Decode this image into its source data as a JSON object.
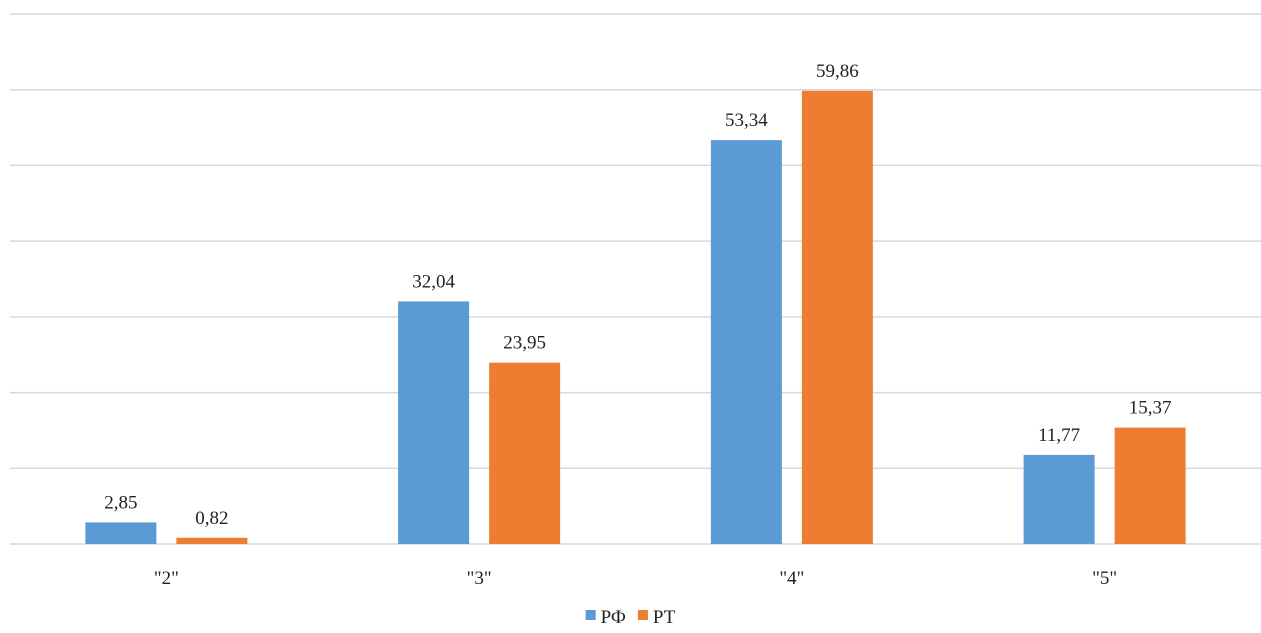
{
  "chart_data": {
    "type": "bar",
    "categories": [
      "\"2\"",
      "\"3\"",
      "\"4\"",
      "\"5\""
    ],
    "series": [
      {
        "name": "РФ",
        "values": [
          2.85,
          32.04,
          53.34,
          11.77
        ],
        "labels": [
          "2,85",
          "32,04",
          "53,34",
          "11,77"
        ],
        "color": "#5b9bd5"
      },
      {
        "name": "РТ",
        "values": [
          0.82,
          23.95,
          59.86,
          15.37
        ],
        "labels": [
          "0,82",
          "23,95",
          "59,86",
          "15,37"
        ],
        "color": "#ed7d31"
      }
    ],
    "ylim": [
      0,
      70
    ],
    "grid": true,
    "gridlines": 8,
    "legend": "bottom-center"
  }
}
